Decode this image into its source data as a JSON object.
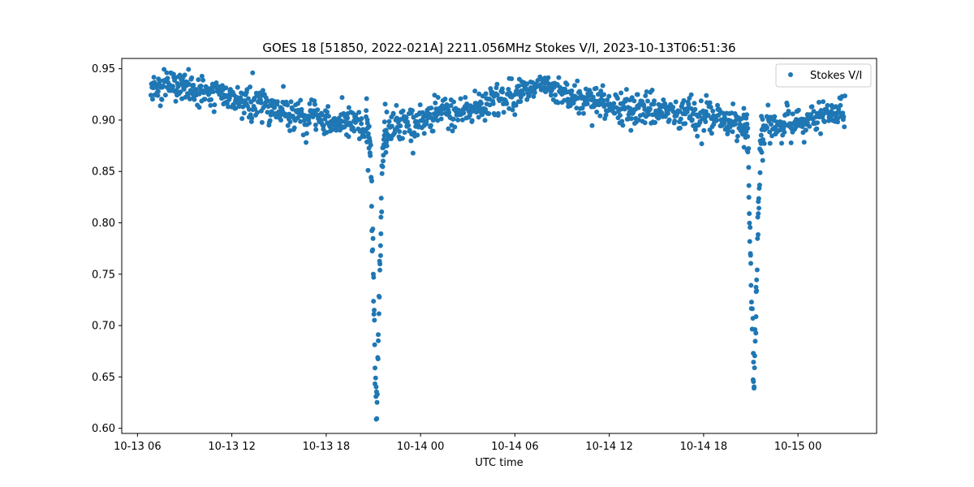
{
  "chart_data": {
    "type": "scatter",
    "title": "GOES 18 [51850, 2022-021A] 2211.056MHz Stokes V/I, 2023-10-13T06:51:36",
    "xlabel": "UTC time",
    "ylabel": "",
    "x_ticks": [
      "10-13 06",
      "10-13 12",
      "10-13 18",
      "10-14 00",
      "10-14 06",
      "10-14 12",
      "10-14 18",
      "10-15 00"
    ],
    "y_ticks": [
      "0.60",
      "0.65",
      "0.70",
      "0.75",
      "0.80",
      "0.85",
      "0.90",
      "0.95"
    ],
    "xlim": [
      "2023-10-13 05:00",
      "2023-10-15 05:00"
    ],
    "ylim": [
      0.595,
      0.96
    ],
    "grid": false,
    "legend_position": "top-right",
    "color": "#1f77b4",
    "series": [
      {
        "name": "Stokes V/I",
        "x": [
          "2023-10-13 06:51",
          "2023-10-13 08:00",
          "2023-10-13 10:00",
          "2023-10-13 12:00",
          "2023-10-13 14:00",
          "2023-10-13 16:00",
          "2023-10-13 18:00",
          "2023-10-13 20:00",
          "2023-10-13 20:48",
          "2023-10-13 21:12",
          "2023-10-13 21:36",
          "2023-10-13 22:00",
          "2023-10-13 23:00",
          "2023-10-14 00:00",
          "2023-10-14 01:30",
          "2023-10-14 02:00",
          "2023-10-14 04:00",
          "2023-10-14 06:00",
          "2023-10-14 08:00",
          "2023-10-14 10:00",
          "2023-10-14 12:00",
          "2023-10-14 14:00",
          "2023-10-14 16:00",
          "2023-10-14 18:00",
          "2023-10-14 20:00",
          "2023-10-14 20:48",
          "2023-10-14 21:12",
          "2023-10-14 21:36",
          "2023-10-14 22:00",
          "2023-10-15 00:00",
          "2023-10-15 02:00",
          "2023-10-15 03:00"
        ],
        "y": [
          0.932,
          0.935,
          0.928,
          0.922,
          0.915,
          0.905,
          0.9,
          0.895,
          0.88,
          0.61,
          0.88,
          0.895,
          0.898,
          0.898,
          0.91,
          0.905,
          0.915,
          0.925,
          0.932,
          0.922,
          0.915,
          0.912,
          0.908,
          0.905,
          0.898,
          0.885,
          0.63,
          0.885,
          0.895,
          0.897,
          0.905,
          0.912
        ]
      }
    ]
  }
}
